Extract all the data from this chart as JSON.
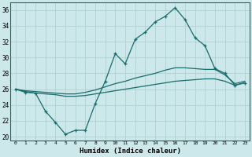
{
  "xlabel": "Humidex (Indice chaleur)",
  "background_color": "#cce8ea",
  "grid_color": "#b0d0d2",
  "line_color": "#1a6b6b",
  "xlim": [
    -0.5,
    23.5
  ],
  "ylim": [
    19.5,
    37.0
  ],
  "xticks": [
    0,
    1,
    2,
    3,
    4,
    5,
    6,
    7,
    8,
    9,
    10,
    11,
    12,
    13,
    14,
    15,
    16,
    17,
    18,
    19,
    20,
    21,
    22,
    23
  ],
  "yticks": [
    20,
    22,
    24,
    26,
    28,
    30,
    32,
    34,
    36
  ],
  "line_jagged": {
    "x": [
      0,
      1,
      2,
      3,
      4,
      5,
      6,
      7,
      8,
      9,
      10,
      11,
      12,
      13,
      14,
      15,
      16,
      17,
      18,
      19,
      20,
      21,
      22,
      23
    ],
    "y": [
      26.0,
      25.6,
      25.5,
      23.2,
      21.8,
      20.3,
      20.8,
      20.8,
      24.2,
      27.0,
      30.5,
      29.2,
      32.3,
      33.2,
      34.5,
      35.2,
      36.3,
      34.8,
      32.5,
      31.5,
      28.6,
      28.0,
      26.5,
      26.8
    ]
  },
  "line_upper": {
    "x": [
      0,
      1,
      2,
      3,
      4,
      5,
      6,
      7,
      8,
      9,
      10,
      11,
      12,
      13,
      14,
      15,
      16,
      17,
      18,
      19,
      20,
      21,
      22,
      23
    ],
    "y": [
      26.0,
      25.8,
      25.7,
      25.6,
      25.5,
      25.4,
      25.4,
      25.6,
      25.9,
      26.3,
      26.7,
      27.0,
      27.4,
      27.7,
      28.0,
      28.4,
      28.7,
      28.7,
      28.6,
      28.5,
      28.5,
      27.8,
      26.7,
      27.0
    ]
  },
  "line_lower": {
    "x": [
      0,
      1,
      2,
      3,
      4,
      5,
      6,
      7,
      8,
      9,
      10,
      11,
      12,
      13,
      14,
      15,
      16,
      17,
      18,
      19,
      20,
      21,
      22,
      23
    ],
    "y": [
      26.0,
      25.7,
      25.5,
      25.4,
      25.3,
      25.1,
      25.1,
      25.2,
      25.4,
      25.6,
      25.8,
      26.0,
      26.2,
      26.4,
      26.6,
      26.8,
      27.0,
      27.1,
      27.2,
      27.3,
      27.3,
      27.0,
      26.5,
      26.8
    ]
  }
}
